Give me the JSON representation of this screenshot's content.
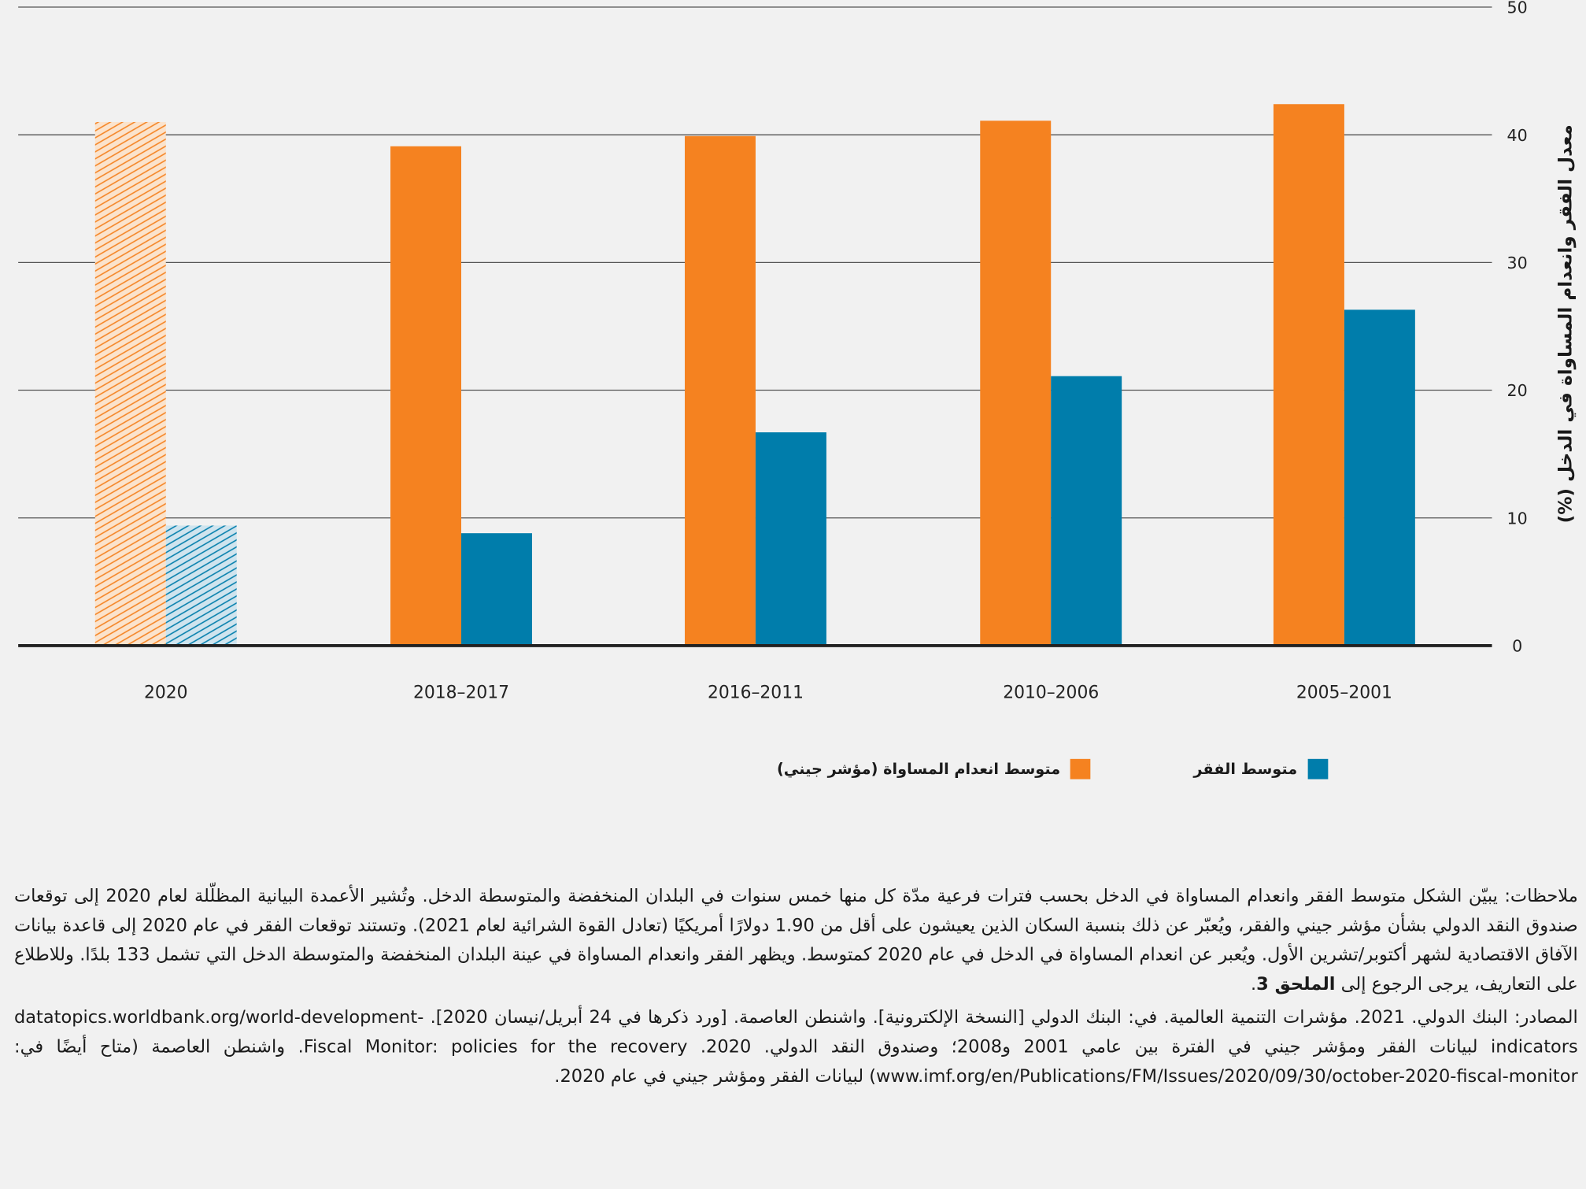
{
  "chart_data": {
    "type": "bar",
    "categories": [
      "2020",
      "2018–2017",
      "2016–2011",
      "2010–2006",
      "2005–2001"
    ],
    "series": [
      {
        "name": "متوسط انعدام المساواة (مؤشر جيني)",
        "color": "#f58220",
        "values": [
          41.0,
          39.1,
          39.9,
          41.1,
          42.4
        ]
      },
      {
        "name": "متوسط الفقر",
        "color": "#007dab",
        "values": [
          9.4,
          8.8,
          16.7,
          21.1,
          26.3
        ]
      }
    ],
    "projected_categories": [
      "2020"
    ],
    "ylabel": "معدل الفقر وانعدام المساواة في الدخل (%)",
    "ylim": [
      0,
      50
    ],
    "yticks": [
      "0",
      "10",
      "20",
      "30",
      "40",
      "50"
    ],
    "legend_position": "bottom",
    "grid": true
  },
  "notes": {
    "text": "ملاحظات: يبيّن الشكل متوسط الفقر وانعدام المساواة في الدخل بحسب فترات فرعية مدّة كل منها خمس سنوات في البلدان المنخفضة والمتوسطة الدخل. وتُشير الأعمدة البيانية المظلّلة لعام 2020 إلى توقعات صندوق النقد الدولي بشأن مؤشر جيني والفقر، ويُعبّر عن ذلك بنسبة السكان الذين يعيشون على أقل من 1.90 دولارًا أمريكيًا (تعادل القوة الشرائية لعام 2021). وتستند توقعات الفقر في عام 2020 إلى قاعدة بيانات الآفاق الاقتصادية لشهر أكتوبر/تشرين الأول. ويُعبر عن انعدام المساواة في الدخل في عام 2020 كمتوسط. ويظهر الفقر وانعدام المساواة في عينة البلدان المنخفضة والمتوسطة الدخل التي تشمل 133 بلدًا. وللاطلاع على التعاريف، يرجى الرجوع إلى",
    "annex": "الملحق 3",
    "sources": "المصادر: البنك الدولي. 2021. مؤشرات التنمية العالمية. في: البنك الدولي [النسخة الإلكترونية]. واشنطن العاصمة. [ورد ذكرها في 24 أبريل/نيسان 2020]. datatopics.worldbank.org/world-development-indicators لبيانات الفقر ومؤشر جيني في الفترة بين عامي 2001 و2008؛ وصندوق النقد الدولي. 2020. Fiscal Monitor: policies for the recovery. واشنطن العاصمة (متاح أيضًا في: www.imf.org/en/Publications/FM/Issues/2020/09/30/october-2020-fiscal-monitor) لبيانات الفقر ومؤشر جيني في عام 2020."
  }
}
